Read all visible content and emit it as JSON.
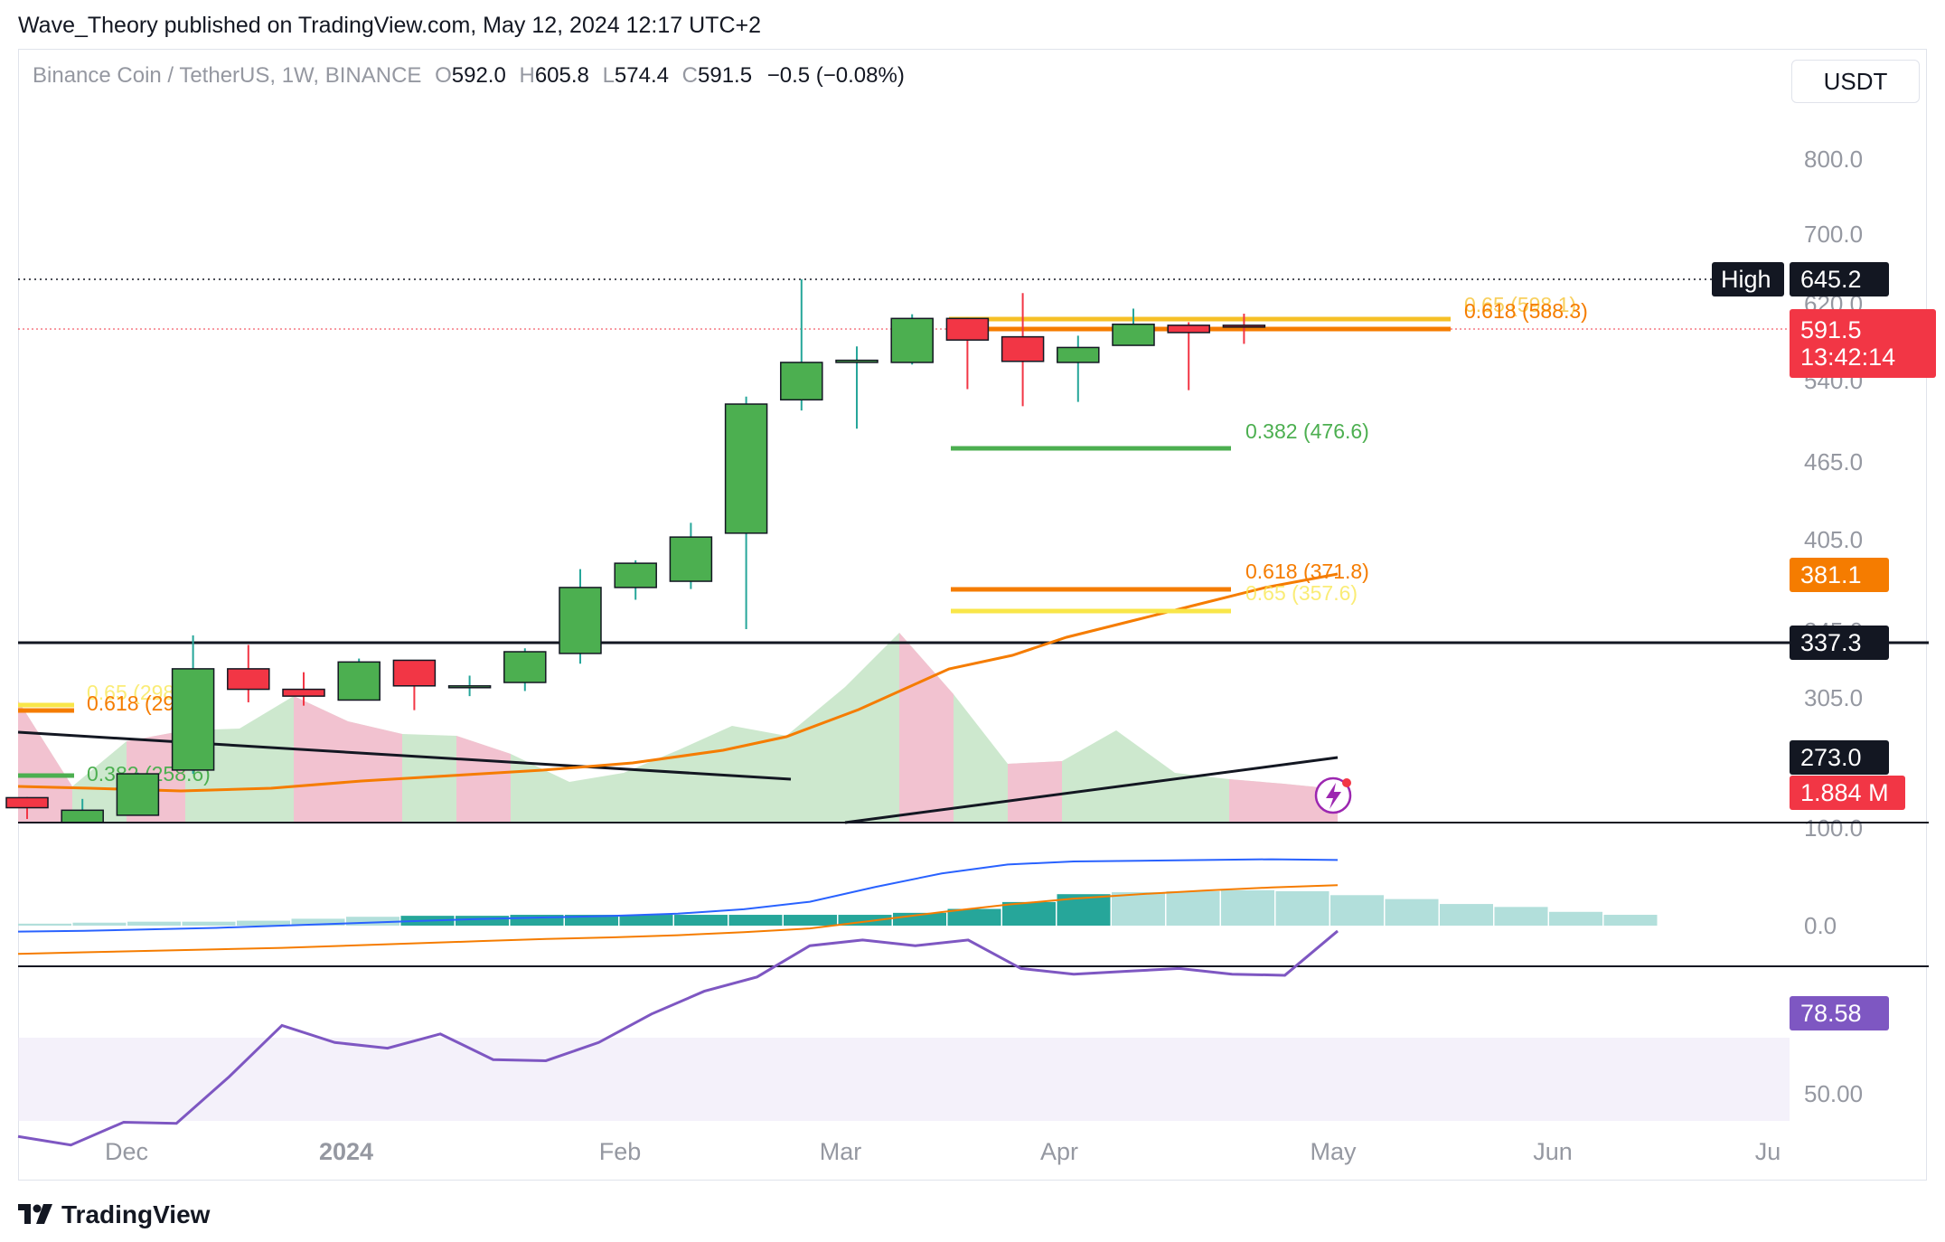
{
  "header": {
    "text": "Wave_Theory published on TradingView.com, May 12, 2024 12:17 UTC+2"
  },
  "legend": {
    "symbol": "Binance Coin / TetherUS, 1W, BINANCE",
    "o_label": "O",
    "o": "592.0",
    "h_label": "H",
    "h": "605.8",
    "l_label": "L",
    "l": "574.4",
    "c_label": "C",
    "c": "591.5",
    "change": "−0.5 (−0.08%)"
  },
  "currency": "USDT",
  "footer": {
    "brand": "TradingView"
  },
  "colors": {
    "up": "#4caf50",
    "down": "#f23645",
    "orange": "#f57c00",
    "yellow": "#ffeb3b",
    "gold": "#f6c026",
    "green_fib": "#4caf50",
    "macd": "#2962ff",
    "rsi": "#7e57c2",
    "hist_strong": "#26a69a",
    "hist_weak": "#b2dfdb"
  },
  "chart_data": [
    {
      "type": "candlestick",
      "title": "Binance Coin / TetherUS, 1W, BINANCE",
      "x_ticks": [
        "Dec",
        "2024",
        "Feb",
        "Mar",
        "Apr",
        "May",
        "Jun",
        "Ju"
      ],
      "y_ticks": [
        "800.0",
        "700.0",
        "620.0",
        "540.0",
        "465.0",
        "405.0",
        "345.0",
        "305.0",
        "100.0"
      ],
      "candles": [
        {
          "o": 241.0,
          "h": 241.5,
          "l": 224.0,
          "c": 233.0
        },
        {
          "o": 221.0,
          "h": 240.0,
          "l": 214.0,
          "c": 231.0
        },
        {
          "o": 227.0,
          "h": 261.0,
          "l": 227.0,
          "c": 260.0
        },
        {
          "o": 263.0,
          "h": 342.0,
          "l": 260.0,
          "c": 322.0
        },
        {
          "o": 322.0,
          "h": 336.0,
          "l": 301.0,
          "c": 310.0
        },
        {
          "o": 310.0,
          "h": 320.0,
          "l": 298.0,
          "c": 306.0
        },
        {
          "o": 303.0,
          "h": 328.0,
          "l": 303.0,
          "c": 326.0
        },
        {
          "o": 327.0,
          "h": 327.0,
          "l": 294.0,
          "c": 312.0
        },
        {
          "o": 312.0,
          "h": 318.0,
          "l": 306.0,
          "c": 312.0
        },
        {
          "o": 314.0,
          "h": 334.0,
          "l": 309.0,
          "c": 332.0
        },
        {
          "o": 331.0,
          "h": 385.0,
          "l": 325.0,
          "c": 373.0
        },
        {
          "o": 373.0,
          "h": 391.0,
          "l": 365.0,
          "c": 389.0
        },
        {
          "o": 377.0,
          "h": 418.0,
          "l": 372.0,
          "c": 407.0
        },
        {
          "o": 410.0,
          "h": 525.0,
          "l": 346.0,
          "c": 518.0
        },
        {
          "o": 522.0,
          "h": 645.2,
          "l": 512.0,
          "c": 557.0
        },
        {
          "o": 557.0,
          "h": 572.0,
          "l": 495.0,
          "c": 559.0
        },
        {
          "o": 557.0,
          "h": 605.0,
          "l": 555.0,
          "c": 599.0
        },
        {
          "o": 599.0,
          "h": 600.0,
          "l": 532.0,
          "c": 578.0
        },
        {
          "o": 581.0,
          "h": 631.0,
          "l": 516.0,
          "c": 558.0
        },
        {
          "o": 557.0,
          "h": 582.0,
          "l": 520.0,
          "c": 571.0
        },
        {
          "o": 573.0,
          "h": 613.0,
          "l": 573.0,
          "c": 593.0
        },
        {
          "o": 592.0,
          "h": 595.0,
          "l": 531.0,
          "c": 585.0
        },
        {
          "o": 592.0,
          "h": 605.8,
          "l": 574.4,
          "c": 591.5
        }
      ],
      "price_labels": [
        {
          "text": "645.2",
          "tag": "High",
          "style": "black"
        },
        {
          "text": "591.5",
          "sub": "13:42:14",
          "style": "red"
        },
        {
          "text": "381.1",
          "style": "orange"
        },
        {
          "text": "337.3",
          "style": "black"
        },
        {
          "text": "273.0",
          "style": "black"
        },
        {
          "text": "1.884 M",
          "style": "red"
        }
      ],
      "fib_levels": [
        {
          "text": "0.65 (598.1)",
          "value": 598.1,
          "color": "gold"
        },
        {
          "text": "0.618 (588.3)",
          "value": 588.3,
          "color": "orange"
        },
        {
          "text": "0.382 (476.6)",
          "value": 476.6,
          "color": "green"
        },
        {
          "text": "0.618 (371.8)",
          "value": 371.8,
          "color": "orange"
        },
        {
          "text": "0.65 (357.6)",
          "value": 357.6,
          "color": "yellow"
        },
        {
          "text": "0.65 (298.5)",
          "value": 298.5,
          "color": "yellow"
        },
        {
          "text": "0.618 (293.7)",
          "value": 293.7,
          "color": "orange"
        },
        {
          "text": "0.382 (258.6)",
          "value": 258.6,
          "color": "green"
        }
      ],
      "support_level": 337.3
    },
    {
      "type": "bar",
      "title": "MACD",
      "y_ticks": [
        "0.0"
      ],
      "histogram": [
        2,
        3,
        4,
        4,
        5,
        7,
        9,
        10,
        10,
        11,
        11,
        11,
        11,
        11,
        11,
        11,
        13,
        17,
        24,
        32,
        34,
        35,
        36,
        35,
        31,
        27,
        22,
        19,
        14,
        11
      ],
      "macd_line": [
        -8,
        -7,
        -5,
        -3,
        0,
        3,
        6,
        9,
        11,
        13,
        16,
        22,
        32,
        52,
        70,
        82,
        86,
        87,
        88,
        89,
        88
      ],
      "signal_line": [
        -16,
        -14,
        -12,
        -10,
        -8,
        -5,
        -2,
        1,
        4,
        6,
        9,
        13,
        18,
        29,
        40,
        50,
        58,
        64,
        69,
        73,
        76
      ]
    },
    {
      "type": "line",
      "title": "RSI",
      "y_ticks": [
        "50.00"
      ],
      "value_label": "78.58",
      "values": [
        42.5,
        41.0,
        45.0,
        44.8,
        53.0,
        62.0,
        59.0,
        58.0,
        60.5,
        56.0,
        55.8,
        59.0,
        64.0,
        68.0,
        70.5,
        76.0,
        77.0,
        76.0,
        77.0,
        72.0,
        71.0,
        71.5,
        72.0,
        71.0,
        70.8,
        78.58
      ]
    }
  ]
}
